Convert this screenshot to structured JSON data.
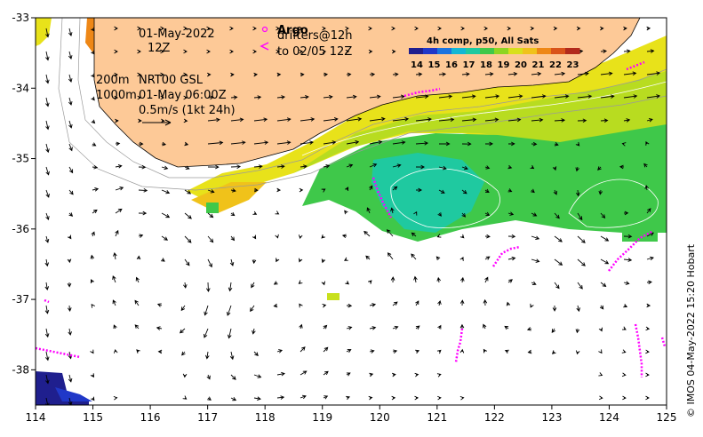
{
  "map": {
    "lon_min": 114,
    "lon_max": 125,
    "lat_min": -38.5,
    "lat_max": -33,
    "x_ticks": [
      "114",
      "115",
      "116",
      "117",
      "118",
      "119",
      "120",
      "121",
      "122",
      "123",
      "124",
      "125"
    ],
    "y_ticks": [
      "-33",
      "-34",
      "-35",
      "-36",
      "-37",
      "-38"
    ],
    "land_color": "#fdc997"
  },
  "labels": {
    "date": "01-May-2022",
    "hour": "12Z",
    "depth_200": "200m",
    "depth_1000": "1000m",
    "product": "NRT00 GSL",
    "product_time": "01-May 06:00Z",
    "scale": "0.5m/s (1kt 24h)",
    "argo": "Argo",
    "drifters": "drifters@12h",
    "drifters_to": "to 02/05 12Z",
    "colorbar_title": "4h comp, p50, All Sats",
    "credit": "© IMOS 04-May-2022 15:20 Hobart"
  },
  "colorbar": {
    "ticks": [
      "14",
      "15",
      "16",
      "17",
      "18",
      "19",
      "20",
      "21",
      "22",
      "23"
    ],
    "colors": [
      "#1f1f8e",
      "#2038c8",
      "#1a74e0",
      "#13b7d4",
      "#1fc9a0",
      "#3fc84a",
      "#8ed522",
      "#d8e01c",
      "#f0c21a",
      "#ee8716",
      "#d9531a",
      "#b22a1c"
    ]
  },
  "markers": {
    "argo_color": "#ff00ff",
    "drifter_color": "#ff00ff"
  }
}
